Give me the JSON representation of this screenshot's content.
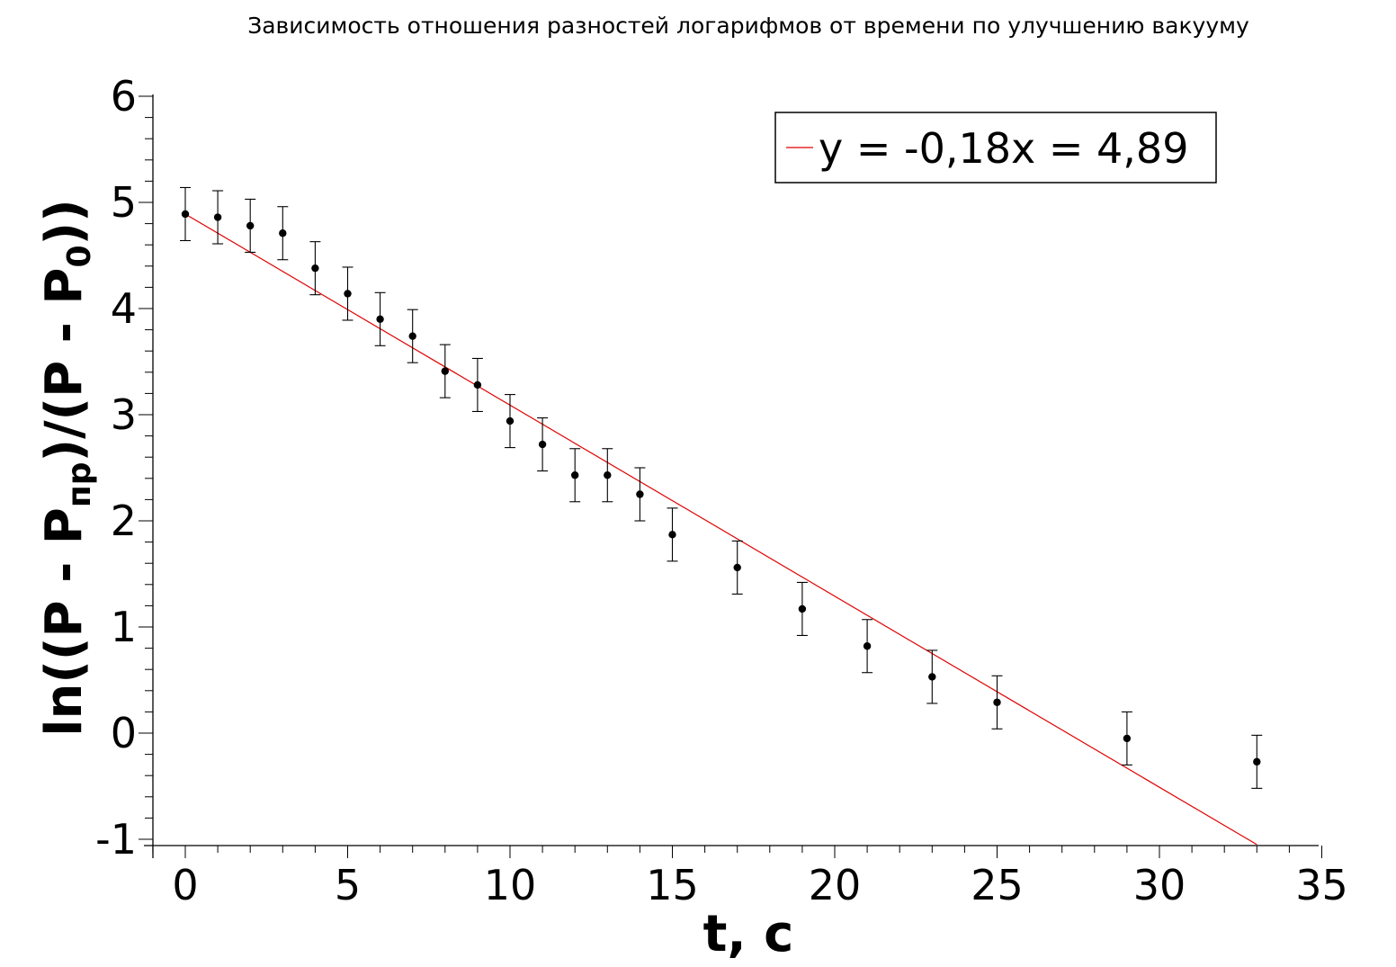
{
  "chart_data": {
    "type": "scatter",
    "title": "Зависимость отношения разностей логарифмов от времени по улучшению вакууму",
    "xlabel": "t, c",
    "ylabel": {
      "prefix": "ln((P - P",
      "sub1": "пр",
      "middle": ")/(P - P",
      "sub2": "0",
      "suffix": "))"
    },
    "xlim": [
      -1,
      35
    ],
    "ylim": [
      -1,
      6
    ],
    "x_ticks": [
      "0",
      "5",
      "10",
      "15",
      "20",
      "25",
      "30",
      "35"
    ],
    "y_ticks": [
      "6",
      "5",
      "4",
      "3",
      "2",
      "1",
      "0",
      "-1"
    ],
    "grid": false,
    "legend_position": "top-right",
    "legend_label": "y = -0,18x = 4,89",
    "fit_line": {
      "slope": -0.18,
      "intercept": 4.89,
      "x_range": [
        0,
        33
      ],
      "color": "#e00000"
    },
    "error_bar": 0.25,
    "points": {
      "x": [
        0,
        1,
        2,
        3,
        4,
        5,
        6,
        7,
        8,
        9,
        10,
        11,
        12,
        13,
        14,
        15,
        17,
        19,
        21,
        23,
        25,
        29,
        33
      ],
      "y": [
        4.89,
        4.86,
        4.78,
        4.71,
        4.38,
        4.14,
        3.9,
        3.74,
        3.41,
        3.28,
        2.94,
        2.72,
        2.43,
        2.43,
        2.25,
        1.87,
        1.56,
        1.17,
        0.82,
        0.53,
        0.29,
        -0.05,
        -0.27
      ]
    }
  }
}
